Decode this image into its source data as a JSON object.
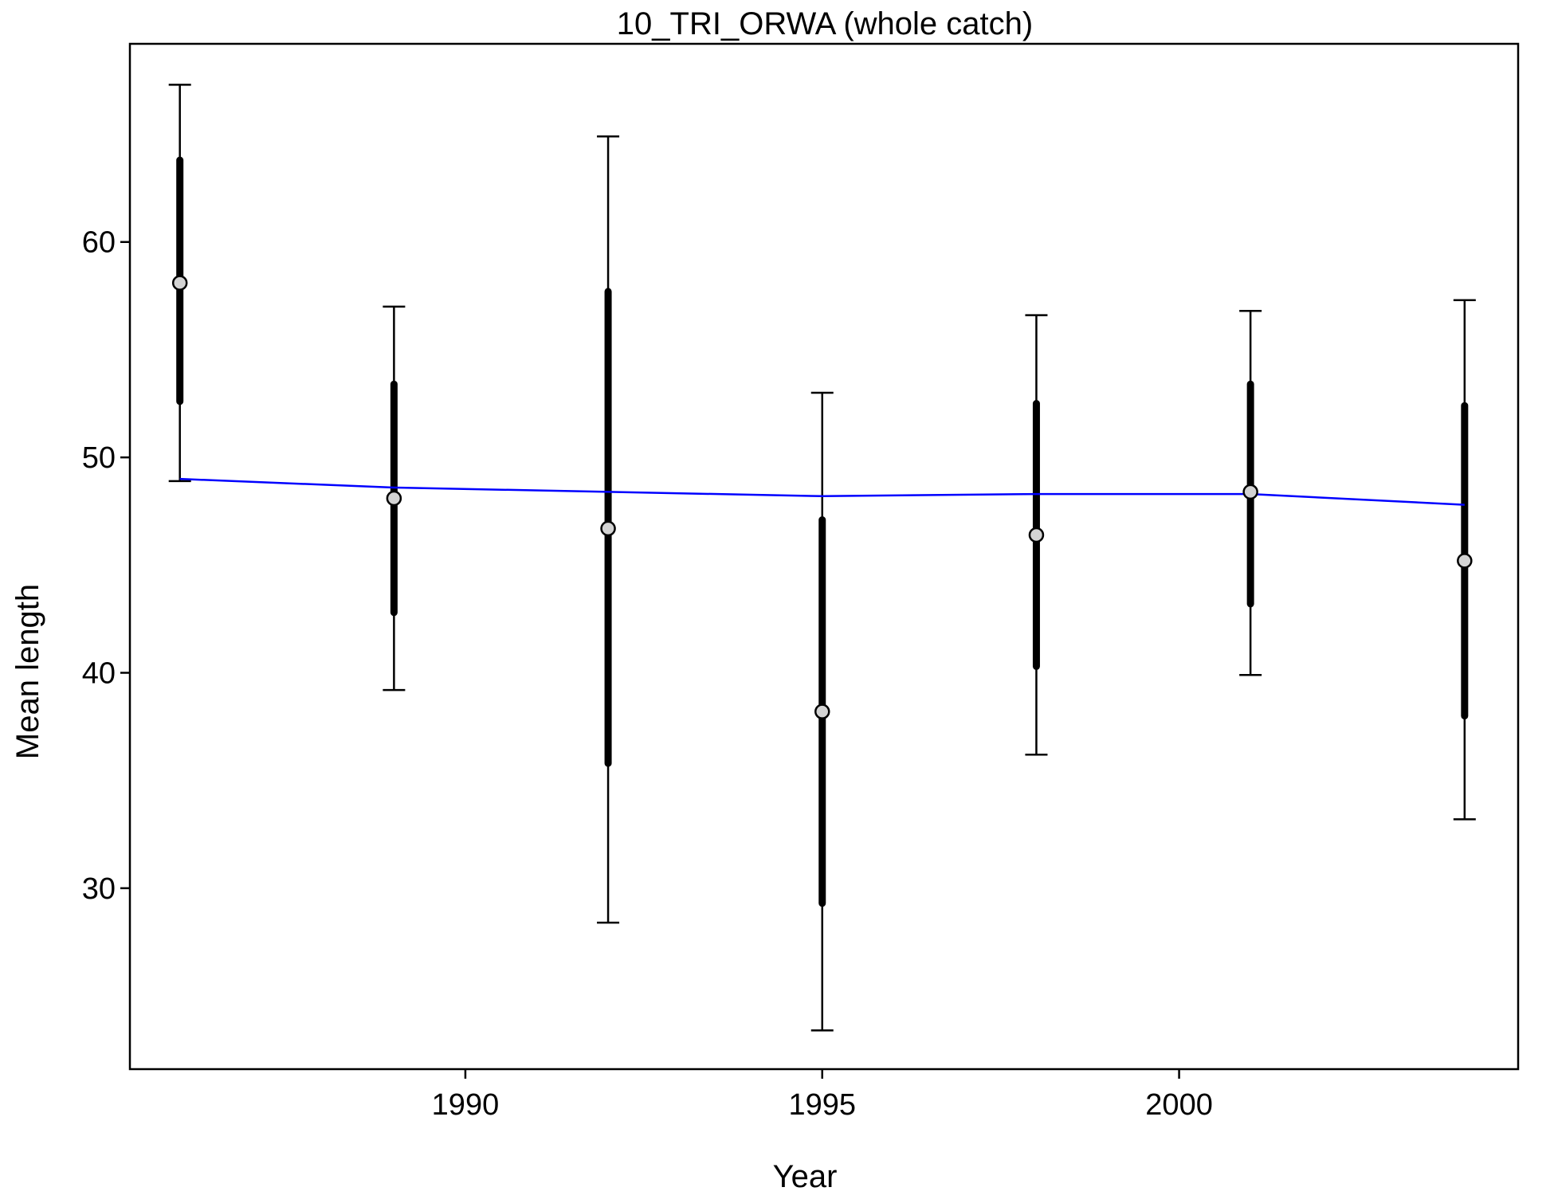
{
  "chart_data": {
    "type": "scatter",
    "title": "10_TRI_ORWA (whole catch)",
    "xlabel": "Year",
    "ylabel": "Mean length",
    "xlim": [
      1985.3,
      2004.75
    ],
    "ylim": [
      21.6,
      69.2
    ],
    "x_ticks": [
      1990,
      1995,
      2000
    ],
    "y_ticks": [
      30,
      40,
      50,
      60
    ],
    "grid": false,
    "legend": "none",
    "colors": {
      "fit_line": "#0000ff",
      "point_fill": "#d3d3d3",
      "point_stroke": "#000000",
      "error_bar": "#000000",
      "frame": "#000000"
    },
    "series": [
      {
        "kind": "observed",
        "x": [
          1986,
          1989,
          1992,
          1995,
          1998,
          2001,
          2004
        ],
        "y": [
          58.1,
          48.1,
          46.7,
          38.2,
          46.4,
          48.4,
          45.2
        ],
        "inner_lower": [
          52.6,
          42.8,
          35.8,
          29.3,
          40.3,
          43.2,
          38.0
        ],
        "inner_upper": [
          63.8,
          53.4,
          57.7,
          47.1,
          52.5,
          53.4,
          52.4
        ],
        "outer_lower": [
          48.9,
          39.2,
          28.4,
          23.4,
          36.2,
          39.9,
          33.2
        ],
        "outer_upper": [
          67.3,
          57.0,
          64.9,
          53.0,
          56.6,
          56.8,
          57.3
        ]
      },
      {
        "kind": "expected",
        "x": [
          1986,
          1989,
          1992,
          1995,
          1998,
          2001,
          2004
        ],
        "y": [
          49.0,
          48.6,
          48.4,
          48.2,
          48.3,
          48.3,
          47.8
        ]
      }
    ]
  }
}
